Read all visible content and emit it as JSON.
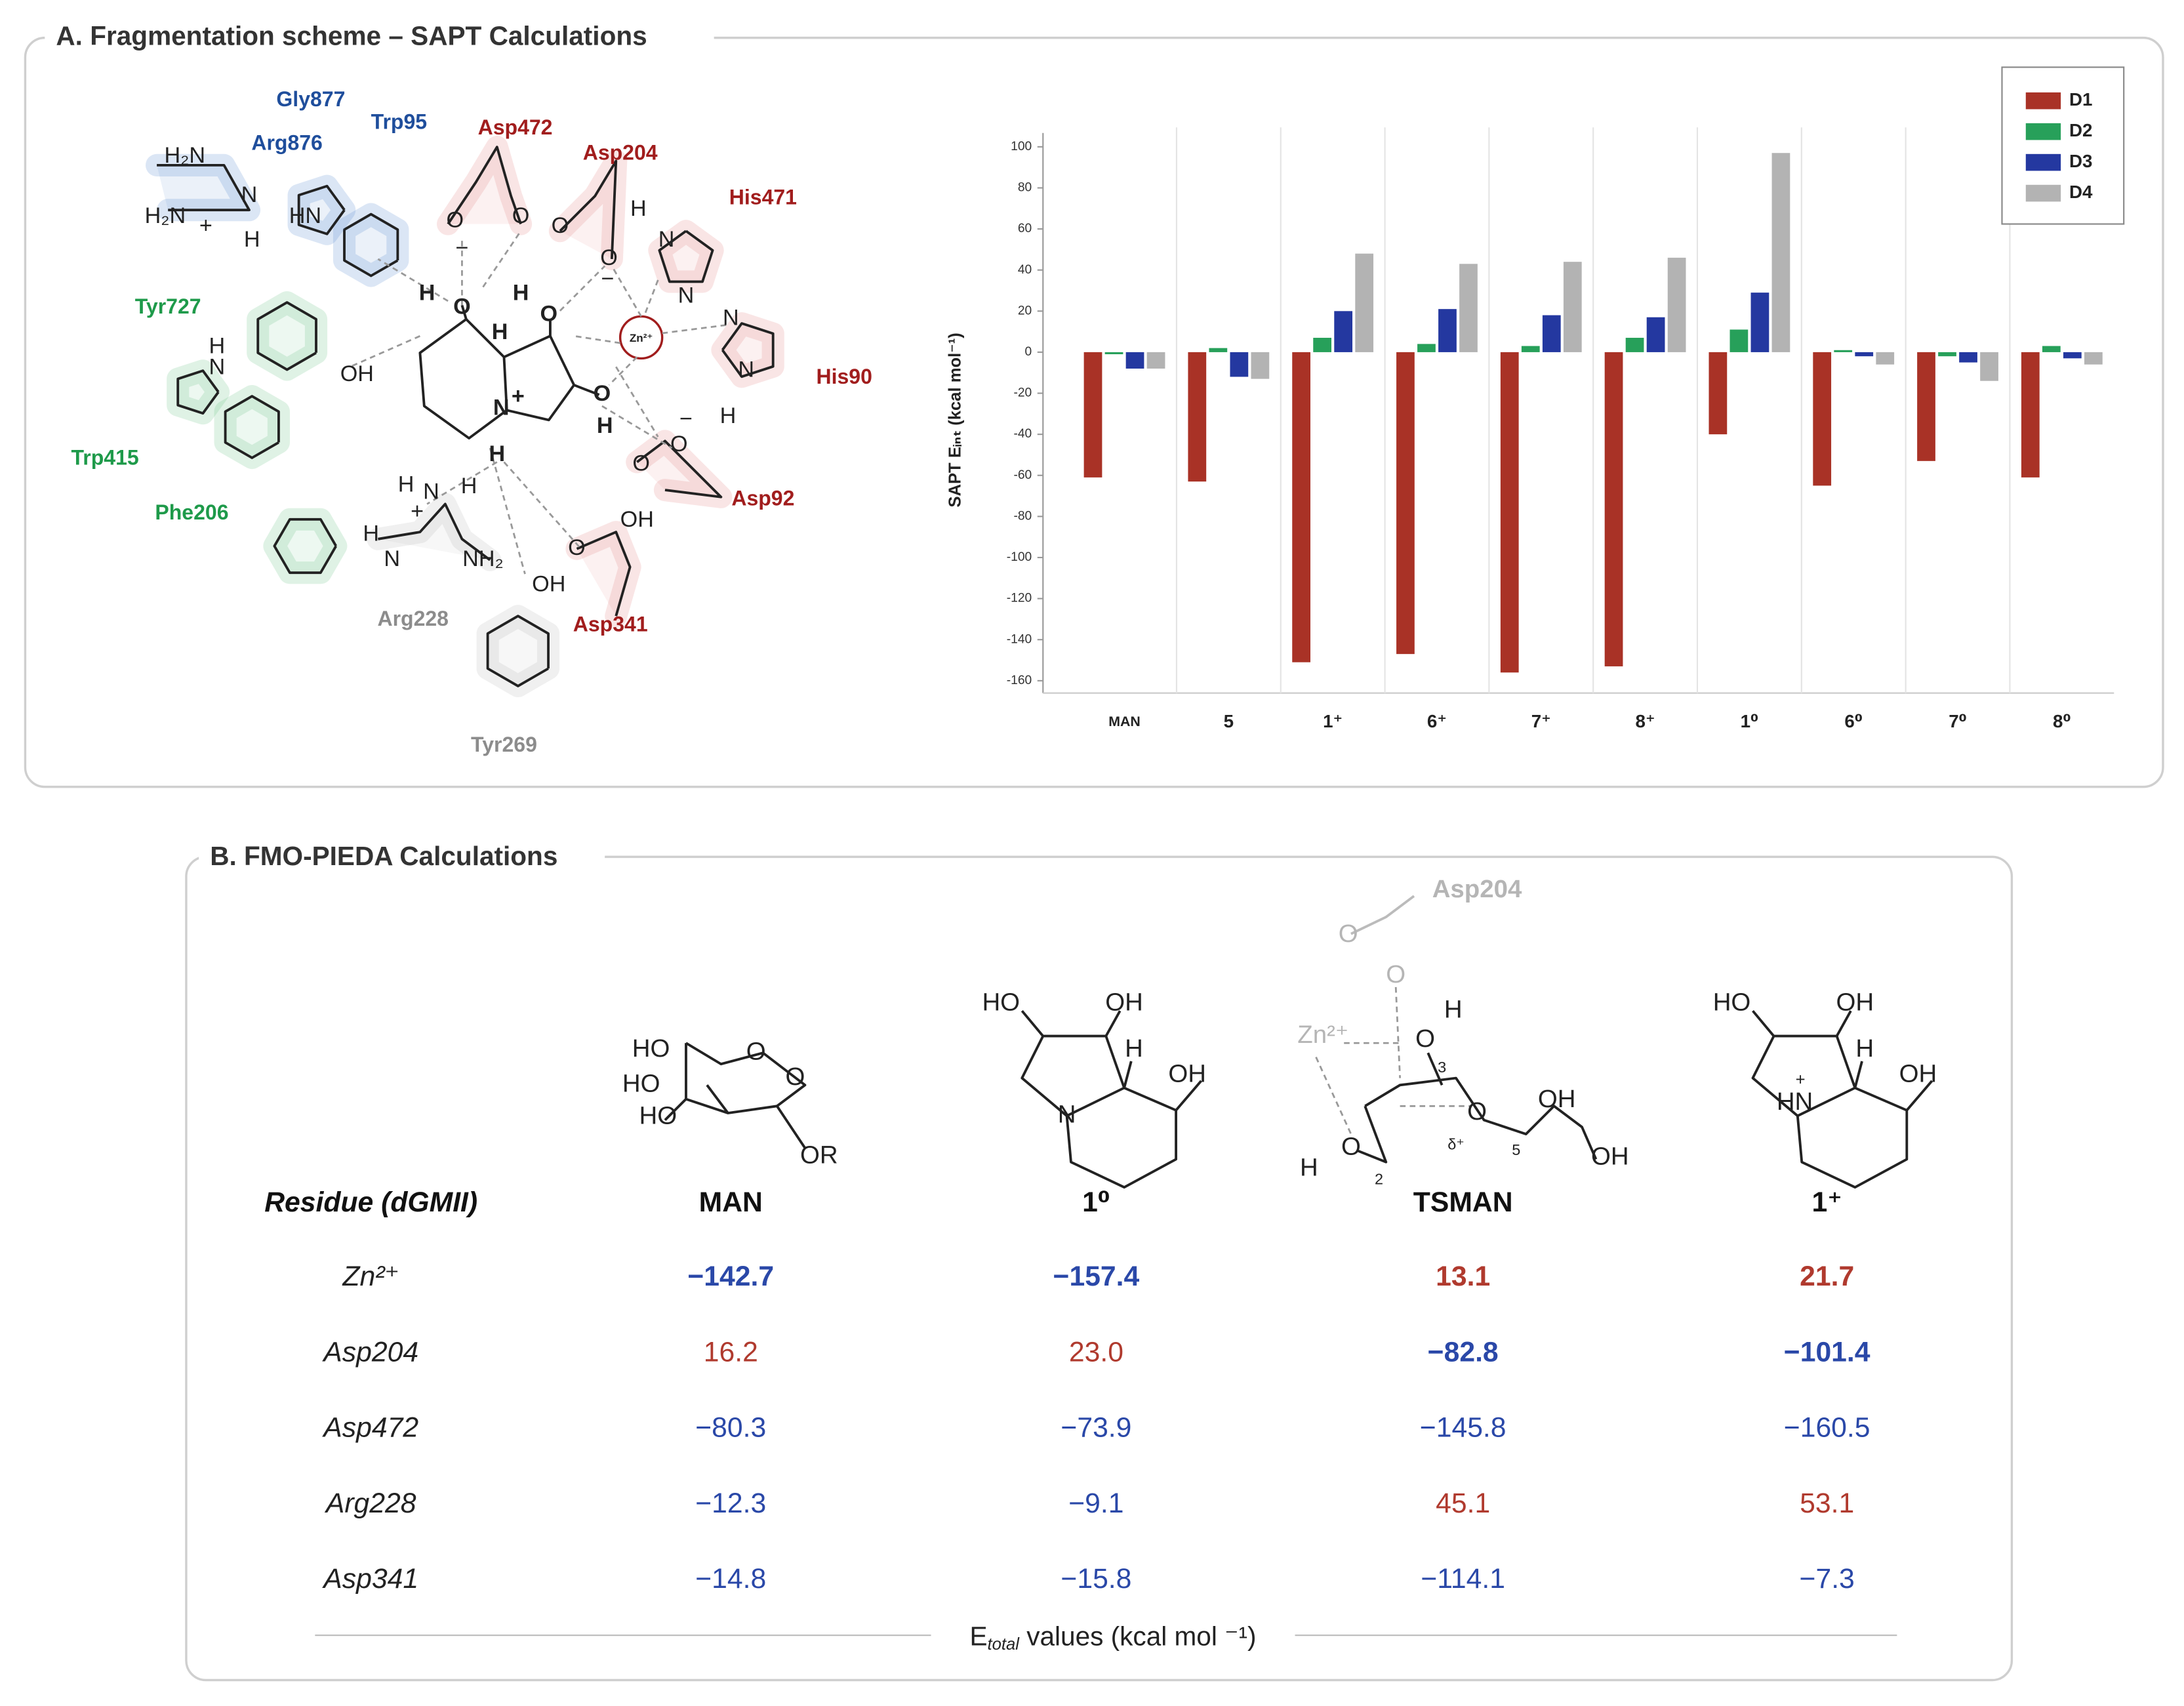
{
  "panel_a": {
    "title": "A. Fragmentation scheme – SAPT Calculations",
    "residues": [
      {
        "name": "Gly877",
        "color": "#1f4e9c"
      },
      {
        "name": "Arg876",
        "color": "#1f4e9c"
      },
      {
        "name": "Trp95",
        "color": "#1f4e9c"
      },
      {
        "name": "Asp472",
        "color": "#a11d1d"
      },
      {
        "name": "Asp204",
        "color": "#a11d1d"
      },
      {
        "name": "His471",
        "color": "#a11d1d"
      },
      {
        "name": "Tyr727",
        "color": "#1e9a4a"
      },
      {
        "name": "His90",
        "color": "#a11d1d"
      },
      {
        "name": "Trp415",
        "color": "#1e9a4a"
      },
      {
        "name": "Phe206",
        "color": "#1e9a4a"
      },
      {
        "name": "Asp92",
        "color": "#a11d1d"
      },
      {
        "name": "Arg228",
        "color": "#8c8c8c"
      },
      {
        "name": "Asp341",
        "color": "#a11d1d"
      },
      {
        "name": "Tyr269",
        "color": "#8c8c8c"
      }
    ],
    "atoms": [
      "H₂N",
      "H₂N",
      "+",
      "N",
      "H",
      "HN",
      "O",
      "O",
      "−",
      "O",
      "H",
      "O",
      "−",
      "N",
      "N",
      "OH",
      "H",
      "N",
      "H",
      "O",
      "H",
      "O",
      "H",
      "Zn²⁺",
      "O",
      "H",
      "N",
      "+",
      "H",
      "N",
      "N",
      "H",
      "O",
      "O",
      "−",
      "H",
      "N",
      "H",
      "+",
      "H",
      "N",
      "NH₂",
      "OH",
      "O",
      "OH"
    ]
  },
  "chart_data": {
    "type": "bar",
    "y_label": "SAPT Eᵢₙₜ (kcal mol⁻¹)",
    "categories": [
      "MAN",
      "5",
      "1⁺",
      "6⁺",
      "7⁺",
      "8⁺",
      "1⁰",
      "6⁰",
      "7⁰",
      "8⁰"
    ],
    "series": [
      {
        "name": "D1",
        "color": "#a93226",
        "values": [
          -61,
          -63,
          -151,
          -147,
          -156,
          -153,
          -40,
          -65,
          -53,
          -61
        ]
      },
      {
        "name": "D2",
        "color": "#27a05a",
        "values": [
          -1,
          2,
          7,
          4,
          3,
          7,
          11,
          1,
          -2,
          3
        ]
      },
      {
        "name": "D3",
        "color": "#2438a0",
        "values": [
          -8,
          -12,
          20,
          21,
          18,
          17,
          29,
          -2,
          -5,
          -3
        ]
      },
      {
        "name": "D4",
        "color": "#b3b3b3",
        "values": [
          -8,
          -13,
          48,
          43,
          44,
          46,
          97,
          -6,
          -14,
          -6
        ]
      }
    ],
    "ylim": [
      -166,
      104
    ],
    "yticks": [
      -160,
      -140,
      -120,
      -100,
      -80,
      -60,
      -40,
      -20,
      0,
      20,
      40,
      60,
      80,
      100
    ],
    "legend": "upper right"
  },
  "panel_b": {
    "title": "B. FMO-PIEDA Calculations",
    "structures": [
      {
        "labels": [
          "HO",
          "O",
          "HO",
          "HO",
          "O",
          "OR"
        ]
      },
      {
        "labels": [
          "HO",
          "OH",
          "H",
          "OH",
          "N"
        ]
      },
      {
        "labels": [
          "Asp204",
          "O",
          "O",
          "Zn²⁺",
          "O",
          "H",
          "3",
          "O",
          "OH",
          "δ⁺",
          "H",
          "O",
          "2",
          "5",
          "OH"
        ]
      },
      {
        "labels": [
          "HO",
          "OH",
          "H",
          "OH",
          "HN",
          "+"
        ]
      }
    ],
    "header": [
      "Residue (dGMII)",
      "MAN",
      "1⁰",
      "TSMAN",
      "1⁺"
    ],
    "rows": [
      {
        "label": "Zn²⁺",
        "cells": [
          {
            "text": "−142.7",
            "bold": true
          },
          {
            "text": "−157.4",
            "bold": true
          },
          {
            "text": "13.1",
            "bold": true
          },
          {
            "text": "21.7",
            "bold": true
          }
        ]
      },
      {
        "label": "Asp204",
        "cells": [
          {
            "text": "16.2",
            "bold": false
          },
          {
            "text": "23.0",
            "bold": false
          },
          {
            "text": "−82.8",
            "bold": true
          },
          {
            "text": "−101.4",
            "bold": true
          }
        ]
      },
      {
        "label": "Asp472",
        "cells": [
          {
            "text": "−80.3",
            "bold": false
          },
          {
            "text": "−73.9",
            "bold": false
          },
          {
            "text": "−145.8",
            "bold": false
          },
          {
            "text": "−160.5",
            "bold": false
          }
        ]
      },
      {
        "label": "Arg228",
        "cells": [
          {
            "text": "−12.3",
            "bold": false
          },
          {
            "text": "−9.1",
            "bold": false
          },
          {
            "text": "45.1",
            "bold": false
          },
          {
            "text": "53.1",
            "bold": false
          }
        ]
      },
      {
        "label": "Asp341",
        "cells": [
          {
            "text": "−14.8",
            "bold": false
          },
          {
            "text": "−15.8",
            "bold": false
          },
          {
            "text": "−114.1",
            "bold": false
          },
          {
            "text": "−7.3",
            "bold": false
          }
        ]
      }
    ],
    "footer": {
      "main": "E",
      "sub": "total",
      "rest": " values (kcal mol ⁻¹)"
    }
  }
}
